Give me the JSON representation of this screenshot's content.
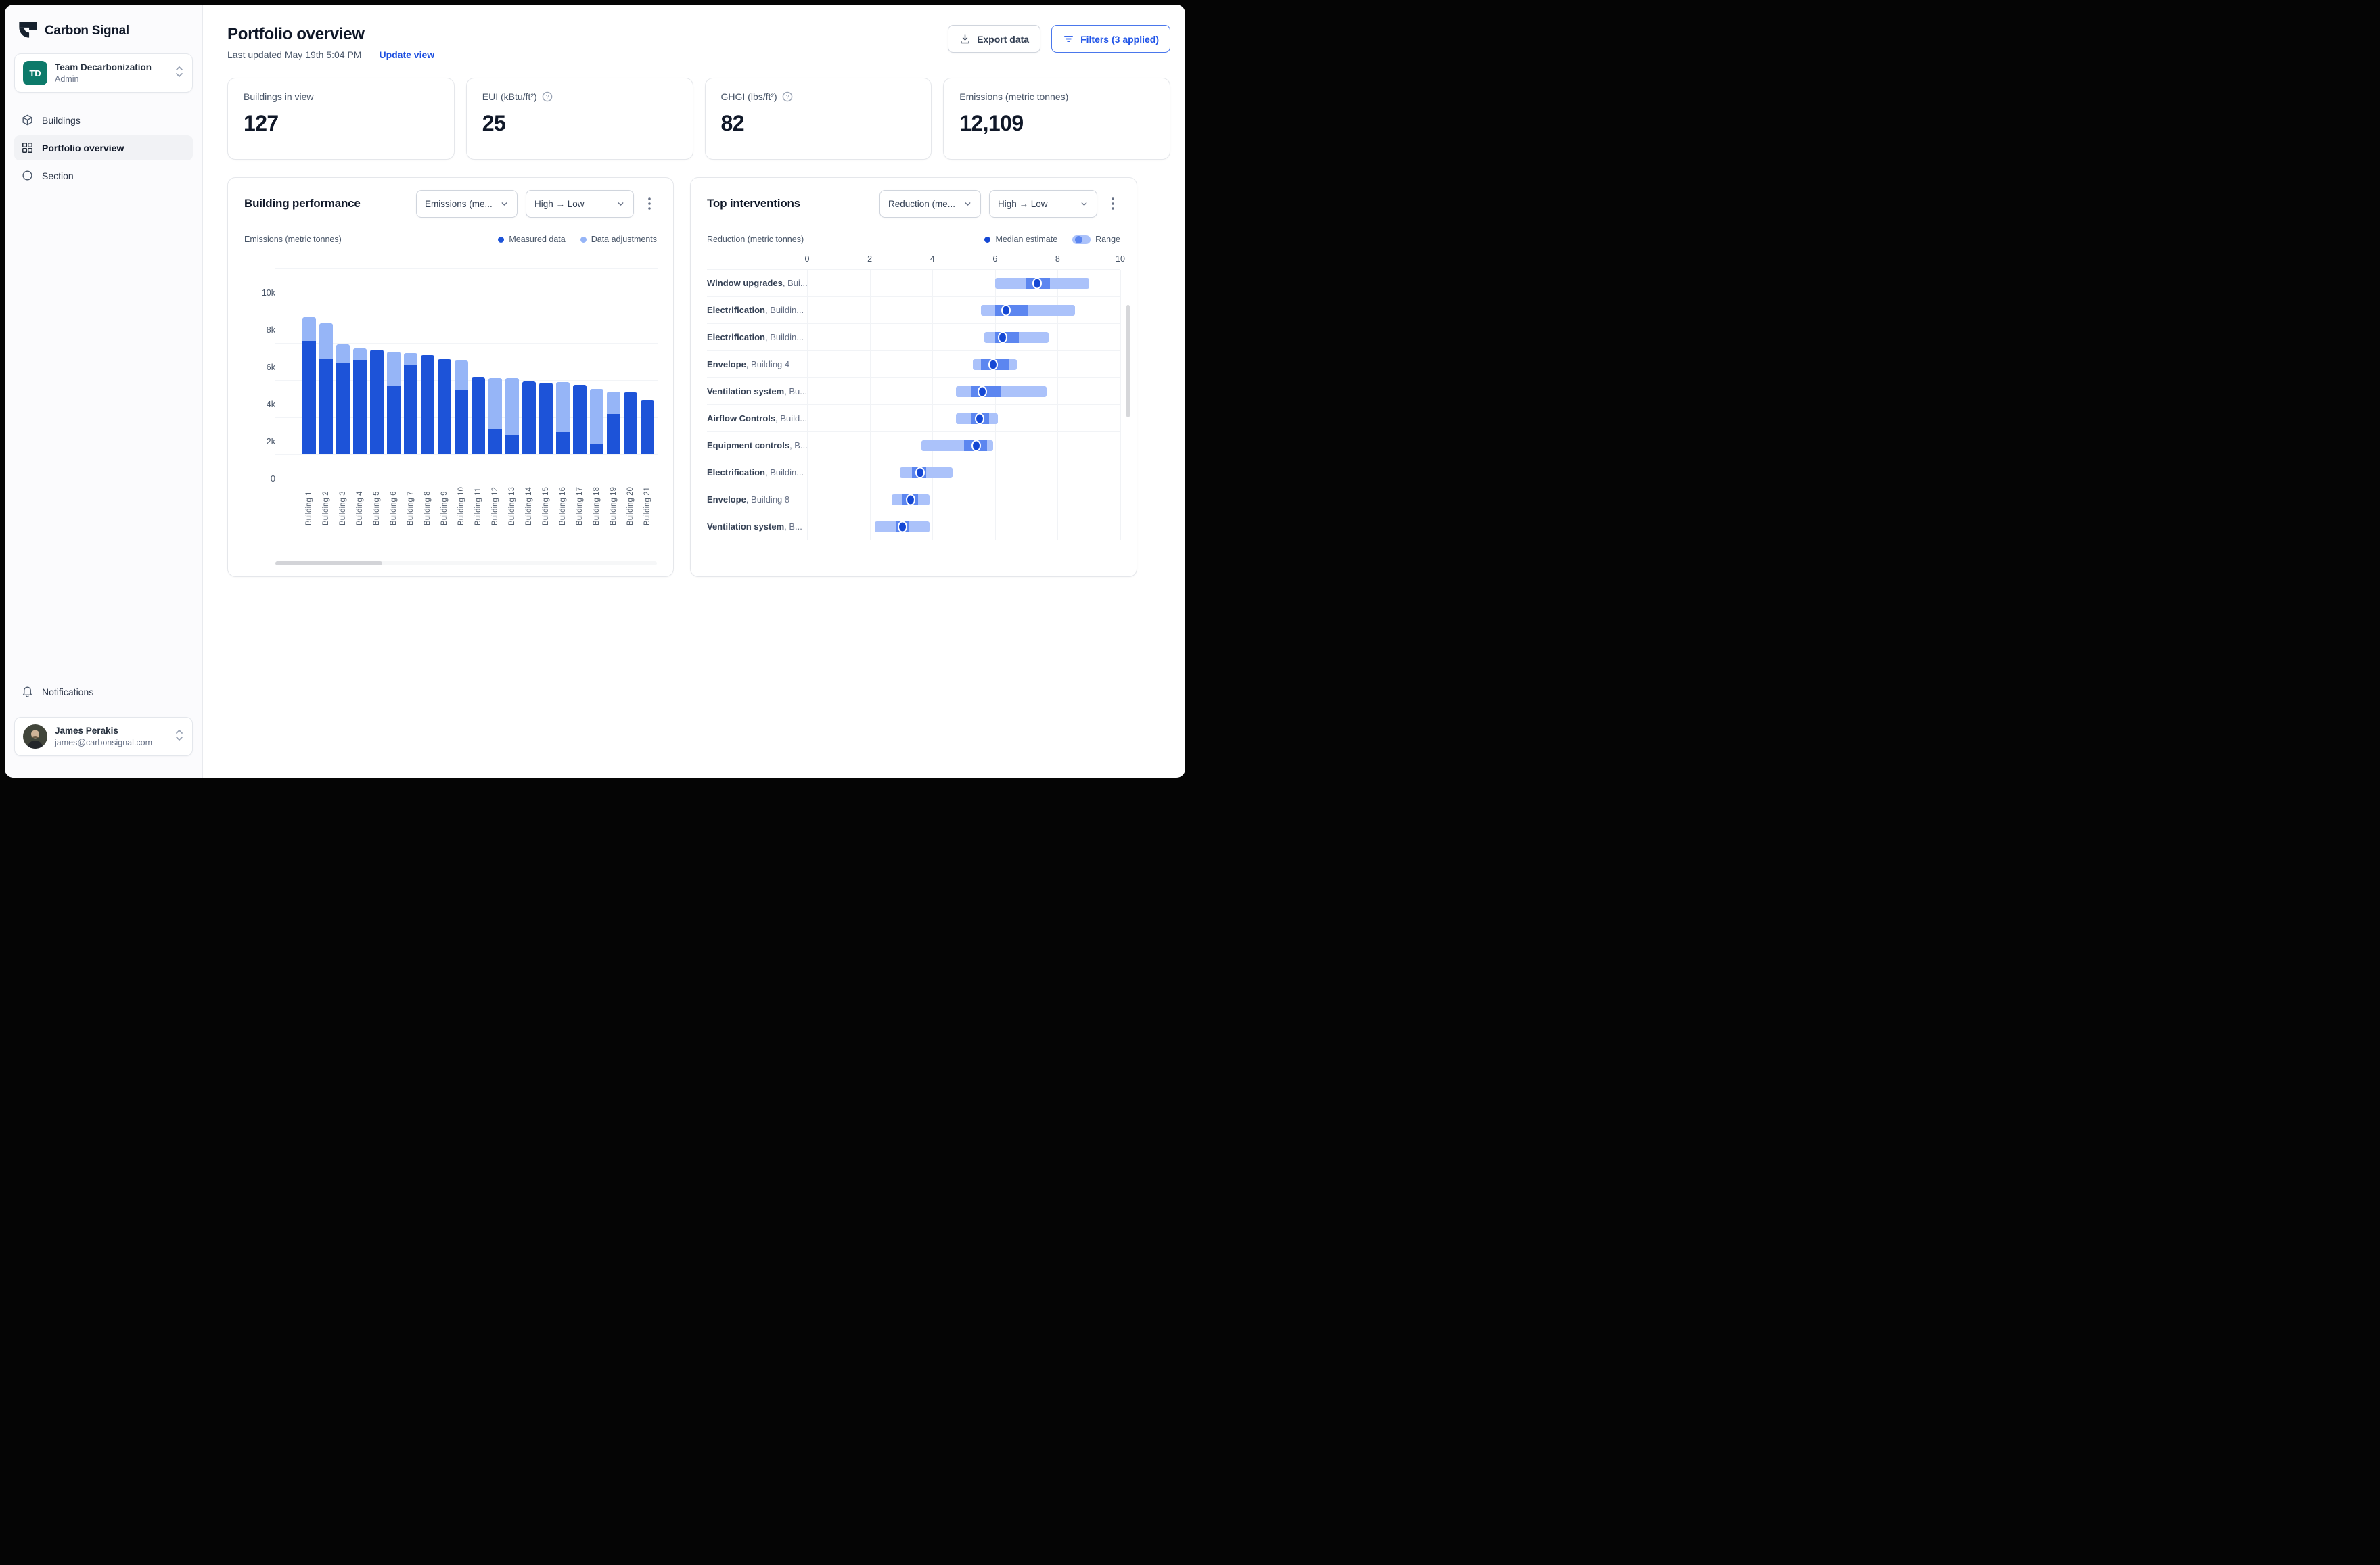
{
  "app": {
    "brand": "Carbon Signal"
  },
  "colors": {
    "accent_blue": "#2155e8",
    "link_blue": "#1d4fe0",
    "measured": "#1d53d8",
    "adjustments": "#96b5f7",
    "range_outer": "#abc2fa",
    "range_inner": "#5c86f0",
    "median": "#1548d4",
    "teal_avatar": "#0d7a6a"
  },
  "sidebar": {
    "team": {
      "initials": "TD",
      "name": "Team Decarbonization",
      "role": "Admin"
    },
    "items": [
      {
        "label": "Buildings"
      },
      {
        "label": "Portfolio overview"
      },
      {
        "label": "Section"
      }
    ],
    "notifications_label": "Notifications",
    "user": {
      "name": "James Perakis",
      "email": "james@carbonsignal.com"
    }
  },
  "header": {
    "title": "Portfolio overview",
    "last_updated": "Last updated May 19th 5:04 PM",
    "update_view": "Update view",
    "export_label": "Export data",
    "filters_label": "Filters (3 applied)"
  },
  "stats": [
    {
      "label": "Buildings in view",
      "value": "127"
    },
    {
      "label": "EUI (kBtu/ft²)",
      "value": "25"
    },
    {
      "label": "GHGI (lbs/ft²)",
      "value": "82"
    },
    {
      "label": "Emissions (metric tonnes)",
      "value": "12,109"
    }
  ],
  "chart_data": [
    {
      "type": "bar",
      "title": "Building performance",
      "ylabel": "Emissions (metric tonnes)",
      "controls": [
        "Emissions (me...",
        "High → Low"
      ],
      "legend": [
        "Measured data",
        "Data adjustments"
      ],
      "ylim": [
        0,
        10000
      ],
      "yticks": [
        "10k",
        "8k",
        "6k",
        "4k",
        "2k",
        "0"
      ],
      "grid": true,
      "categories": [
        "Building 1",
        "Building 2",
        "Building 3",
        "Building 4",
        "Building 5",
        "Building 6",
        "Building 7",
        "Building 8",
        "Building 9",
        "Building 10",
        "Building 11",
        "Building 12",
        "Building 13",
        "Building 14",
        "Building 15",
        "Building 16",
        "Building 17",
        "Building 18",
        "Building 19",
        "Building 20",
        "Building 21"
      ],
      "series": [
        {
          "name": "Measured data",
          "color": "#1d53d8",
          "values": [
            6100,
            5150,
            4950,
            5050,
            5650,
            3700,
            4850,
            5350,
            5150,
            3500,
            4150,
            1400,
            1050,
            3950,
            3850,
            1200,
            3750,
            550,
            2200,
            3350,
            2900
          ]
        },
        {
          "name": "Data adjustments (stacked total)",
          "color": "#96b5f7",
          "values_total": [
            7400,
            7050,
            5950,
            5700,
            5650,
            5550,
            5450,
            5350,
            5150,
            5050,
            4150,
            4100,
            4100,
            3950,
            3850,
            3900,
            3750,
            3550,
            3400,
            3350,
            2900
          ]
        }
      ]
    },
    {
      "type": "range",
      "title": "Top interventions",
      "xlabel": "Reduction (metric tonnes)",
      "controls": [
        "Reduction (me...",
        "High → Low"
      ],
      "legend": [
        "Median estimate",
        "Range"
      ],
      "xlim": [
        0,
        10
      ],
      "xticks": [
        0,
        2,
        4,
        6,
        8,
        10
      ],
      "grid": true,
      "rows": [
        {
          "label": "Window upgrades",
          "sub": "Bui...",
          "range": [
            6.0,
            9.0
          ],
          "inner": [
            7.0,
            7.75
          ],
          "median": 7.35
        },
        {
          "label": "Electrification",
          "sub": "Buildin...",
          "range": [
            5.55,
            8.55
          ],
          "inner": [
            6.0,
            7.05
          ],
          "median": 6.35
        },
        {
          "label": "Electrification",
          "sub": "Buildin...",
          "range": [
            5.65,
            7.7
          ],
          "inner": [
            6.0,
            6.75
          ],
          "median": 6.25
        },
        {
          "label": "Envelope",
          "sub": "Building 4",
          "range": [
            5.3,
            6.7
          ],
          "inner": [
            5.55,
            6.45
          ],
          "median": 5.95
        },
        {
          "label": "Ventilation system",
          "sub": "Bu...",
          "range": [
            4.75,
            7.65
          ],
          "inner": [
            5.25,
            6.2
          ],
          "median": 5.6
        },
        {
          "label": "Airflow Controls",
          "sub": "Build...",
          "range": [
            4.75,
            6.1
          ],
          "inner": [
            5.25,
            5.8
          ],
          "median": 5.5
        },
        {
          "label": "Equipment controls",
          "sub": "B...",
          "range": [
            3.65,
            5.95
          ],
          "inner": [
            5.0,
            5.75
          ],
          "median": 5.4
        },
        {
          "label": "Electrification",
          "sub": "Buildin...",
          "range": [
            2.95,
            4.65
          ],
          "inner": [
            3.35,
            3.8
          ],
          "median": 3.6
        },
        {
          "label": "Envelope",
          "sub": "Building 8",
          "range": [
            2.7,
            3.9
          ],
          "inner": [
            3.05,
            3.55
          ],
          "median": 3.3
        },
        {
          "label": "Ventilation system",
          "sub": "B...",
          "range": [
            2.15,
            3.9
          ],
          "inner": [
            2.85,
            3.25
          ],
          "median": 3.05
        }
      ]
    }
  ]
}
